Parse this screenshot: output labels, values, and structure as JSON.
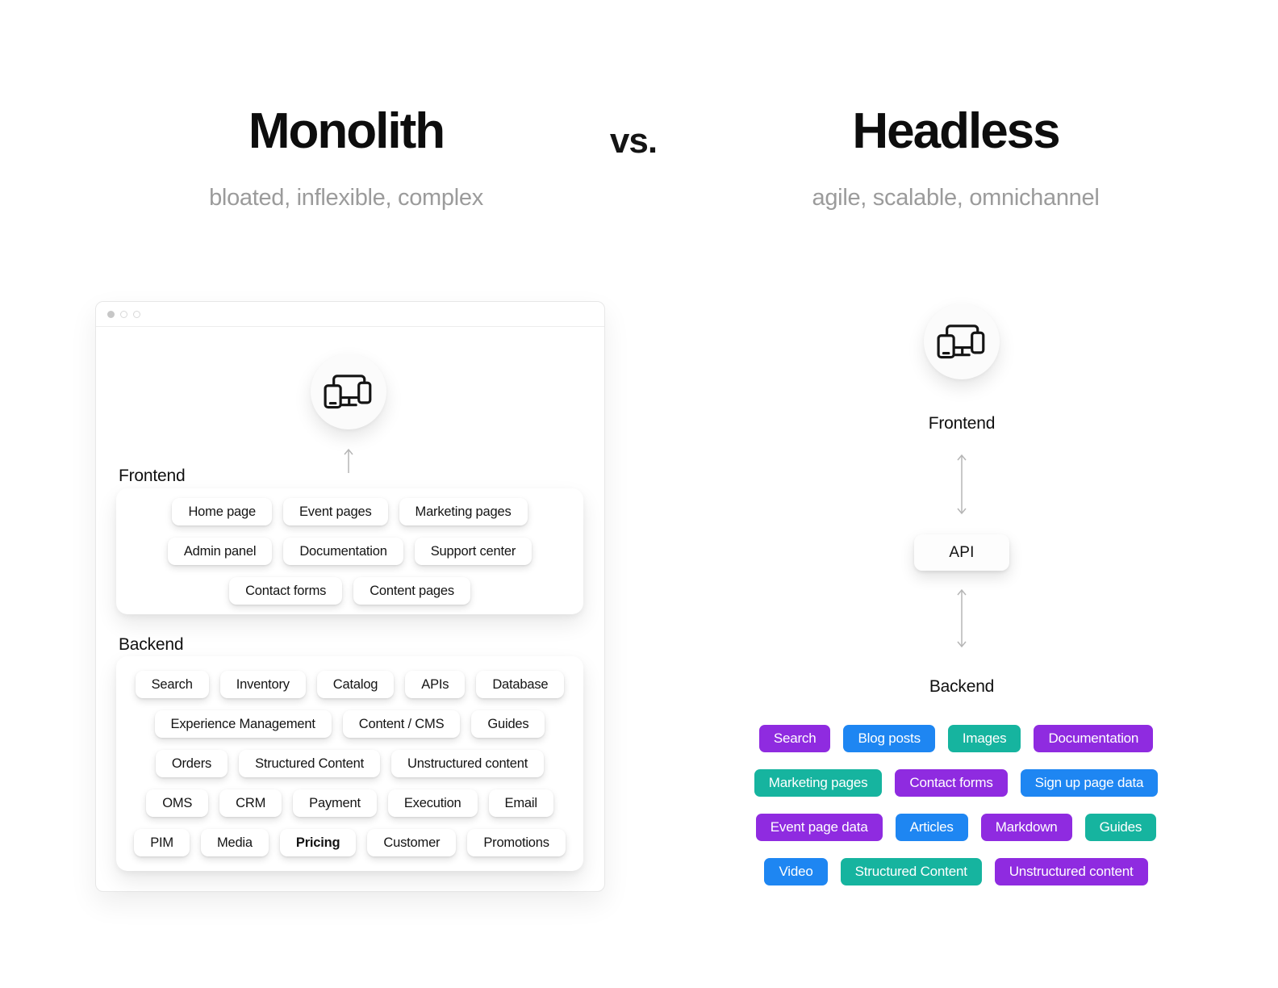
{
  "colors": {
    "purple": "#8F2BE0",
    "blue": "#1E86F2",
    "teal": "#16B49F"
  },
  "header": {
    "left_title": "Monolith",
    "left_subtitle": "bloated, inflexible, complex",
    "vs_label": "vs.",
    "right_title": "Headless",
    "right_subtitle": "agile, scalable, omnichannel"
  },
  "monolith": {
    "frontend_label": "Frontend",
    "backend_label": "Backend",
    "frontend_rows": [
      [
        "Home page",
        "Event pages",
        "Marketing pages"
      ],
      [
        "Admin panel",
        "Documentation",
        "Support center"
      ],
      [
        "Contact forms",
        "Content pages"
      ]
    ],
    "backend_rows": [
      [
        "Search",
        "Inventory",
        "Catalog",
        "APIs",
        "Database"
      ],
      [
        "Experience Management",
        "Content / CMS",
        "Guides"
      ],
      [
        "Orders",
        "Structured Content",
        "Unstructured content"
      ],
      [
        "OMS",
        "CRM",
        "Payment",
        "Execution",
        "Email"
      ],
      [
        "PIM",
        "Media",
        "Pricing",
        "Customer",
        "Promotions"
      ]
    ],
    "emphasized_chip": "Pricing"
  },
  "headless": {
    "frontend_label": "Frontend",
    "api_label": "API",
    "backend_label": "Backend",
    "chip_rows": [
      [
        {
          "label": "Search",
          "color": "purple"
        },
        {
          "label": "Blog posts",
          "color": "blue"
        },
        {
          "label": "Images",
          "color": "teal"
        },
        {
          "label": "Documentation",
          "color": "purple"
        }
      ],
      [
        {
          "label": "Marketing pages",
          "color": "teal"
        },
        {
          "label": "Contact forms",
          "color": "purple"
        },
        {
          "label": "Sign up page data",
          "color": "blue"
        }
      ],
      [
        {
          "label": "Event page data",
          "color": "purple"
        },
        {
          "label": "Articles",
          "color": "blue"
        },
        {
          "label": "Markdown",
          "color": "purple"
        },
        {
          "label": "Guides",
          "color": "teal"
        }
      ],
      [
        {
          "label": "Video",
          "color": "blue"
        },
        {
          "label": "Structured Content",
          "color": "teal"
        },
        {
          "label": "Unstructured content",
          "color": "purple"
        }
      ]
    ]
  },
  "icons": {
    "devices": "devices-icon",
    "up_arrow": "arrow-up-icon",
    "double_arrow": "arrow-vertical-double-icon",
    "window_dots": "window-control-dots"
  }
}
